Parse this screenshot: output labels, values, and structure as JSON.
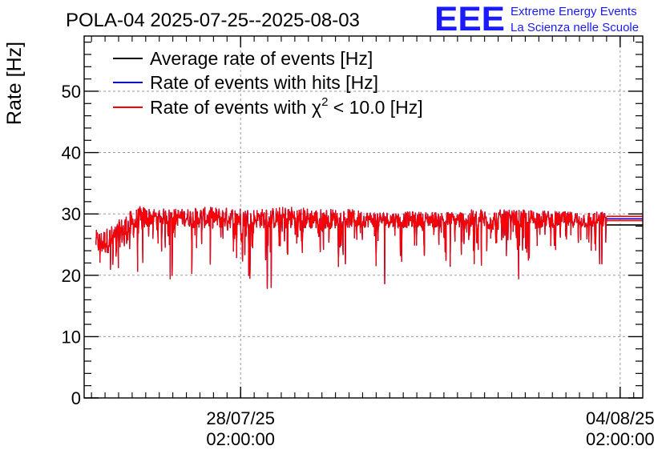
{
  "header": {
    "title": "POLA-04 2025-07-25--2025-08-03"
  },
  "logo": {
    "mark": "EEE",
    "line1": "Extreme Energy Events",
    "line2": "La Scienza nelle Scuole",
    "color": "#1a1aff"
  },
  "chart_data": {
    "type": "line",
    "title": "POLA-04 2025-07-25--2025-08-03",
    "ylabel": "Rate [Hz]",
    "xlabel": "",
    "ylim": [
      0,
      59
    ],
    "xlim": [
      "2025-07-25 04:45:00",
      "2025-08-04 12:00:00"
    ],
    "grid": true,
    "legend_position": "top-left",
    "y_ticks": [
      0,
      10,
      20,
      30,
      40,
      50
    ],
    "y_tick_labels": [
      "0",
      "10",
      "20",
      "30",
      "40",
      "50"
    ],
    "x_ticks": [
      {
        "time": "2025-07-28 02:00:00",
        "date_label": "28/07/25",
        "time_label": "02:00:00"
      },
      {
        "time": "2025-08-04 02:00:00",
        "date_label": "04/08/25",
        "time_label": "02:00:00"
      }
    ],
    "series": [
      {
        "name": "Average rate of events [Hz]",
        "color": "#000000"
      },
      {
        "name": "Rate of events with hits [Hz]",
        "color": "#0000cc"
      },
      {
        "name": "Rate of events with χ² < 10.0 [Hz]",
        "color": "#ff0000",
        "name_parts": {
          "before": "Rate of events with ",
          "symbol": "χ",
          "sup": "2",
          "after": " < 10.0 [Hz]"
        }
      }
    ],
    "x": [
      "2025-07-25 10:00",
      "2025-07-25 12:00",
      "2025-07-25 18:00",
      "2025-07-26 00:00",
      "2025-07-26 06:00",
      "2025-07-26 12:00",
      "2025-07-27 00:00",
      "2025-07-27 12:00",
      "2025-07-28 00:00",
      "2025-07-28 12:00",
      "2025-07-29 00:00",
      "2025-07-29 12:00",
      "2025-07-30 00:00",
      "2025-07-30 12:00",
      "2025-07-31 00:00",
      "2025-07-31 12:00",
      "2025-08-01 00:00",
      "2025-08-01 12:00",
      "2025-08-02 00:00",
      "2025-08-02 12:00",
      "2025-08-03 00:00",
      "2025-08-03 12:00",
      "2025-08-03 18:00",
      "2025-08-04 00:00",
      "2025-08-04 12:00"
    ],
    "y_typical": [
      25.5,
      25.0,
      26.0,
      27.5,
      29.0,
      29.5,
      29.3,
      29.2,
      29.2,
      29.1,
      29.2,
      29.0,
      29.1,
      29.0,
      28.9,
      29.0,
      28.9,
      28.9,
      28.9,
      29.0,
      29.0,
      28.9,
      29.0,
      29.0,
      29.0
    ],
    "y_min_dips": [
      20.0,
      15.8,
      19.5,
      21.0,
      17.0,
      21.5,
      16.3,
      20.0,
      22.0,
      16.3,
      21.0,
      21.5,
      21.0,
      20.5,
      16.3,
      21.0,
      21.0,
      21.0,
      21.0,
      16.3,
      21.5,
      21.5,
      11.4,
      20.0,
      28.0
    ],
    "y_max_peaks": [
      27.5,
      27.5,
      28.5,
      30.5,
      31.5,
      31.0,
      31.0,
      31.3,
      31.2,
      31.0,
      31.5,
      31.0,
      31.0,
      30.5,
      30.5,
      30.5,
      30.5,
      31.0,
      30.8,
      30.8,
      30.5,
      30.5,
      30.5,
      30.0,
      30.0
    ]
  }
}
